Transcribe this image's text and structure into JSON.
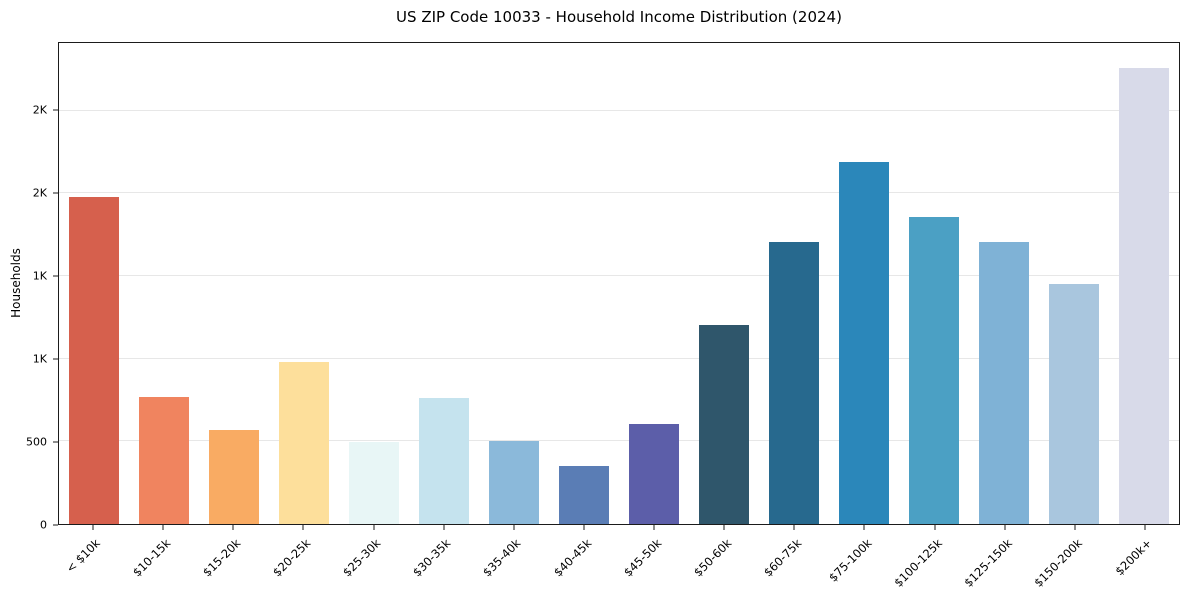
{
  "chart_data": {
    "type": "bar",
    "title": "US ZIP Code 10033 - Household Income Distribution (2024)",
    "xlabel": "",
    "ylabel": "Households",
    "categories": [
      "< $10k",
      "$10-15k",
      "$15-20k",
      "$20-25k",
      "$25-30k",
      "$30-35k",
      "$35-40k",
      "$40-45k",
      "$45-50k",
      "$50-60k",
      "$60-75k",
      "$75-100k",
      "$100-125k",
      "$125-150k",
      "$150-200k",
      "$200k+"
    ],
    "values": [
      1980,
      770,
      570,
      980,
      495,
      760,
      500,
      350,
      605,
      1205,
      1705,
      2190,
      1860,
      1705,
      1450,
      2760
    ],
    "bar_colors": [
      "#d6604d",
      "#f0845f",
      "#f9ab63",
      "#fddf9b",
      "#e8f6f6",
      "#c5e3ee",
      "#8bb9da",
      "#5a7db5",
      "#5c5ea9",
      "#2f566b",
      "#27698e",
      "#2b87ba",
      "#4ba0c4",
      "#7fb2d6",
      "#a9c6de",
      "#d8dae9"
    ],
    "ylim": [
      0,
      2910
    ],
    "yticks": [
      {
        "value": 0,
        "label": "0"
      },
      {
        "value": 500,
        "label": "500"
      },
      {
        "value": 1000,
        "label": "1K"
      },
      {
        "value": 1500,
        "label": "1K"
      },
      {
        "value": 2000,
        "label": "2K"
      },
      {
        "value": 2500,
        "label": "2K"
      }
    ],
    "grid": "horizontal",
    "legend": "none",
    "colors": {
      "spine": "#1b1b1b",
      "gridline": "#e7e7e7",
      "background": "#ffffff"
    }
  }
}
